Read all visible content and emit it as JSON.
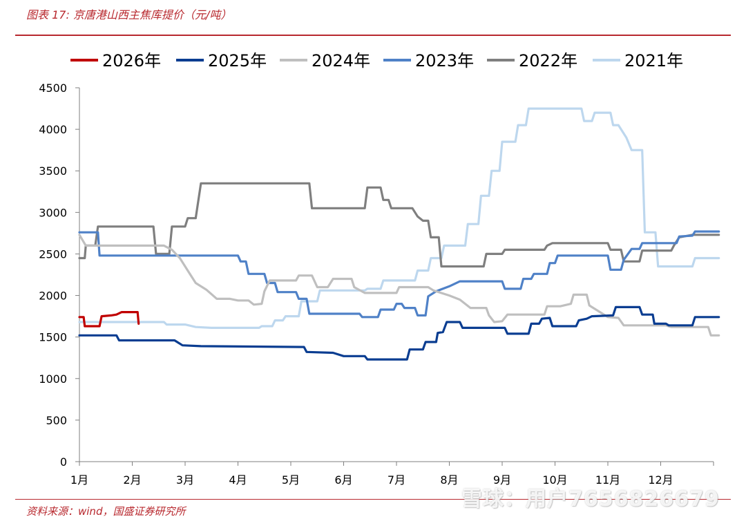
{
  "figure_title": "图表 17: 京唐港山西主焦库提价（元/吨）",
  "source_note": "资料来源：wind，国盛证券研究所",
  "watermark": "雪球：用户7656826679",
  "chart_data": {
    "type": "line",
    "title": "",
    "xlabel": "",
    "ylabel": "",
    "ylim": [
      0,
      4500
    ],
    "yticks": [
      "0",
      "500",
      "1000",
      "1500",
      "2000",
      "2500",
      "3000",
      "3500",
      "4000",
      "4500"
    ],
    "xlim": [
      1,
      13
    ],
    "xticks": [
      "1月",
      "2月",
      "3月",
      "4月",
      "5月",
      "6月",
      "7月",
      "8月",
      "9月",
      "10月",
      "11月",
      "12月"
    ],
    "grid": false,
    "legend_position": "top",
    "series": [
      {
        "name": "2026年",
        "color": "#c00000",
        "width": 3.2,
        "points": [
          [
            1,
            1740
          ],
          [
            1.08,
            1740
          ],
          [
            1.1,
            1630
          ],
          [
            1.38,
            1630
          ],
          [
            1.42,
            1750
          ],
          [
            1.6,
            1760
          ],
          [
            1.7,
            1770
          ],
          [
            1.8,
            1800
          ],
          [
            2.1,
            1800
          ],
          [
            2.12,
            1660
          ]
        ]
      },
      {
        "name": "2025年",
        "color": "#0a3d91",
        "width": 3.2,
        "points": [
          [
            1,
            1520
          ],
          [
            1.7,
            1520
          ],
          [
            1.75,
            1460
          ],
          [
            2.8,
            1460
          ],
          [
            2.95,
            1400
          ],
          [
            3.3,
            1390
          ],
          [
            5.25,
            1380
          ],
          [
            5.3,
            1320
          ],
          [
            5.8,
            1310
          ],
          [
            6,
            1270
          ],
          [
            6.4,
            1270
          ],
          [
            6.45,
            1230
          ],
          [
            7.2,
            1230
          ],
          [
            7.25,
            1350
          ],
          [
            7.5,
            1350
          ],
          [
            7.55,
            1440
          ],
          [
            7.75,
            1440
          ],
          [
            7.78,
            1550
          ],
          [
            7.88,
            1560
          ],
          [
            7.95,
            1680
          ],
          [
            8.2,
            1680
          ],
          [
            8.25,
            1610
          ],
          [
            9.05,
            1610
          ],
          [
            9.1,
            1540
          ],
          [
            9.5,
            1540
          ],
          [
            9.55,
            1660
          ],
          [
            9.7,
            1660
          ],
          [
            9.75,
            1720
          ],
          [
            9.9,
            1730
          ],
          [
            9.95,
            1630
          ],
          [
            10.4,
            1630
          ],
          [
            10.45,
            1700
          ],
          [
            10.6,
            1720
          ],
          [
            10.7,
            1750
          ],
          [
            11.1,
            1760
          ],
          [
            11.15,
            1860
          ],
          [
            11.6,
            1860
          ],
          [
            11.65,
            1770
          ],
          [
            11.85,
            1770
          ],
          [
            11.88,
            1660
          ],
          [
            12.1,
            1660
          ],
          [
            12.15,
            1640
          ],
          [
            12.6,
            1640
          ],
          [
            12.65,
            1740
          ],
          [
            13.1,
            1740
          ]
        ]
      },
      {
        "name": "2024年",
        "color": "#bfbfbf",
        "width": 3.2,
        "points": [
          [
            1,
            2730
          ],
          [
            1.12,
            2600
          ],
          [
            2.6,
            2600
          ],
          [
            2.75,
            2550
          ],
          [
            2.9,
            2450
          ],
          [
            3.05,
            2300
          ],
          [
            3.2,
            2150
          ],
          [
            3.4,
            2070
          ],
          [
            3.6,
            1960
          ],
          [
            3.85,
            1960
          ],
          [
            4,
            1940
          ],
          [
            4.2,
            1940
          ],
          [
            4.3,
            1890
          ],
          [
            4.45,
            1900
          ],
          [
            4.5,
            2050
          ],
          [
            4.6,
            2180
          ],
          [
            5.1,
            2180
          ],
          [
            5.15,
            2240
          ],
          [
            5.4,
            2240
          ],
          [
            5.5,
            2100
          ],
          [
            5.7,
            2100
          ],
          [
            5.8,
            2200
          ],
          [
            6.15,
            2200
          ],
          [
            6.2,
            2100
          ],
          [
            6.4,
            2030
          ],
          [
            7,
            2030
          ],
          [
            7.05,
            2100
          ],
          [
            7.6,
            2100
          ],
          [
            7.7,
            2060
          ],
          [
            8,
            2000
          ],
          [
            8.2,
            1950
          ],
          [
            8.4,
            1850
          ],
          [
            8.7,
            1850
          ],
          [
            8.75,
            1760
          ],
          [
            8.85,
            1680
          ],
          [
            9,
            1690
          ],
          [
            9.1,
            1770
          ],
          [
            9.8,
            1770
          ],
          [
            9.85,
            1870
          ],
          [
            10.1,
            1870
          ],
          [
            10.3,
            1900
          ],
          [
            10.35,
            2010
          ],
          [
            10.6,
            2010
          ],
          [
            10.65,
            1880
          ],
          [
            10.9,
            1780
          ],
          [
            11,
            1740
          ],
          [
            11.2,
            1730
          ],
          [
            11.3,
            1640
          ],
          [
            12.1,
            1640
          ],
          [
            12.2,
            1620
          ],
          [
            12.9,
            1620
          ],
          [
            12.95,
            1520
          ],
          [
            13.1,
            1520
          ]
        ]
      },
      {
        "name": "2023年",
        "color": "#4f81c7",
        "width": 3.2,
        "points": [
          [
            1,
            2760
          ],
          [
            1.35,
            2760
          ],
          [
            1.38,
            2480
          ],
          [
            4,
            2480
          ],
          [
            4.05,
            2410
          ],
          [
            4.15,
            2410
          ],
          [
            4.2,
            2260
          ],
          [
            4.5,
            2260
          ],
          [
            4.55,
            2150
          ],
          [
            4.7,
            2150
          ],
          [
            4.75,
            2040
          ],
          [
            5.1,
            2040
          ],
          [
            5.15,
            1960
          ],
          [
            5.3,
            1960
          ],
          [
            5.35,
            1780
          ],
          [
            6.3,
            1780
          ],
          [
            6.35,
            1740
          ],
          [
            6.65,
            1740
          ],
          [
            6.7,
            1830
          ],
          [
            6.95,
            1830
          ],
          [
            7,
            1900
          ],
          [
            7.1,
            1900
          ],
          [
            7.15,
            1850
          ],
          [
            7.35,
            1850
          ],
          [
            7.4,
            1760
          ],
          [
            7.55,
            1760
          ],
          [
            7.6,
            1990
          ],
          [
            7.75,
            2050
          ],
          [
            8,
            2110
          ],
          [
            8.2,
            2170
          ],
          [
            9,
            2170
          ],
          [
            9.05,
            2080
          ],
          [
            9.35,
            2080
          ],
          [
            9.4,
            2200
          ],
          [
            9.55,
            2200
          ],
          [
            9.6,
            2260
          ],
          [
            9.85,
            2260
          ],
          [
            9.9,
            2390
          ],
          [
            10,
            2390
          ],
          [
            10.05,
            2480
          ],
          [
            11,
            2480
          ],
          [
            11.05,
            2310
          ],
          [
            11.25,
            2310
          ],
          [
            11.3,
            2430
          ],
          [
            11.45,
            2560
          ],
          [
            11.6,
            2560
          ],
          [
            11.65,
            2630
          ],
          [
            12.3,
            2630
          ],
          [
            12.35,
            2710
          ],
          [
            12.6,
            2720
          ],
          [
            12.65,
            2770
          ],
          [
            13.1,
            2770
          ]
        ]
      },
      {
        "name": "2022年",
        "color": "#7f7f7f",
        "width": 3.2,
        "points": [
          [
            1,
            2450
          ],
          [
            1.1,
            2450
          ],
          [
            1.12,
            2600
          ],
          [
            1.3,
            2600
          ],
          [
            1.35,
            2830
          ],
          [
            2.4,
            2830
          ],
          [
            2.45,
            2500
          ],
          [
            2.7,
            2500
          ],
          [
            2.75,
            2830
          ],
          [
            3,
            2830
          ],
          [
            3.05,
            2930
          ],
          [
            3.2,
            2930
          ],
          [
            3.3,
            3350
          ],
          [
            5.35,
            3350
          ],
          [
            5.4,
            3050
          ],
          [
            6.4,
            3050
          ],
          [
            6.45,
            3300
          ],
          [
            6.7,
            3300
          ],
          [
            6.75,
            3150
          ],
          [
            6.85,
            3150
          ],
          [
            6.9,
            3050
          ],
          [
            7.3,
            3050
          ],
          [
            7.4,
            2950
          ],
          [
            7.5,
            2900
          ],
          [
            7.6,
            2900
          ],
          [
            7.65,
            2700
          ],
          [
            7.8,
            2700
          ],
          [
            7.85,
            2350
          ],
          [
            8.65,
            2350
          ],
          [
            8.7,
            2500
          ],
          [
            9,
            2500
          ],
          [
            9.05,
            2550
          ],
          [
            9.8,
            2550
          ],
          [
            9.85,
            2600
          ],
          [
            9.95,
            2630
          ],
          [
            11,
            2630
          ],
          [
            11.05,
            2550
          ],
          [
            11.25,
            2550
          ],
          [
            11.3,
            2410
          ],
          [
            11.6,
            2410
          ],
          [
            11.65,
            2540
          ],
          [
            12.2,
            2540
          ],
          [
            12.25,
            2600
          ],
          [
            12.35,
            2700
          ],
          [
            12.6,
            2730
          ],
          [
            13.1,
            2730
          ]
        ]
      },
      {
        "name": "2021年",
        "color": "#bdd7ee",
        "width": 3.2,
        "points": [
          [
            1,
            1680
          ],
          [
            2.6,
            1680
          ],
          [
            2.65,
            1650
          ],
          [
            3,
            1650
          ],
          [
            3.2,
            1620
          ],
          [
            3.5,
            1610
          ],
          [
            4.4,
            1610
          ],
          [
            4.45,
            1630
          ],
          [
            4.65,
            1630
          ],
          [
            4.7,
            1700
          ],
          [
            4.85,
            1700
          ],
          [
            4.9,
            1750
          ],
          [
            5.15,
            1750
          ],
          [
            5.2,
            1930
          ],
          [
            5.5,
            1930
          ],
          [
            5.55,
            2060
          ],
          [
            6.4,
            2060
          ],
          [
            6.45,
            2080
          ],
          [
            6.7,
            2080
          ],
          [
            6.75,
            2180
          ],
          [
            7.35,
            2180
          ],
          [
            7.4,
            2300
          ],
          [
            7.6,
            2300
          ],
          [
            7.65,
            2450
          ],
          [
            7.85,
            2450
          ],
          [
            7.9,
            2600
          ],
          [
            8.3,
            2600
          ],
          [
            8.35,
            2860
          ],
          [
            8.55,
            2860
          ],
          [
            8.6,
            3200
          ],
          [
            8.75,
            3200
          ],
          [
            8.8,
            3500
          ],
          [
            8.95,
            3500
          ],
          [
            9,
            3850
          ],
          [
            9.25,
            3850
          ],
          [
            9.3,
            4050
          ],
          [
            9.45,
            4050
          ],
          [
            9.5,
            4250
          ],
          [
            10.5,
            4250
          ],
          [
            10.55,
            4100
          ],
          [
            10.7,
            4100
          ],
          [
            10.75,
            4200
          ],
          [
            11.05,
            4200
          ],
          [
            11.1,
            4050
          ],
          [
            11.2,
            4050
          ],
          [
            11.35,
            3900
          ],
          [
            11.45,
            3750
          ],
          [
            11.65,
            3750
          ],
          [
            11.7,
            2760
          ],
          [
            11.9,
            2760
          ],
          [
            11.95,
            2350
          ],
          [
            12.6,
            2350
          ],
          [
            12.65,
            2450
          ],
          [
            13.1,
            2450
          ]
        ]
      }
    ]
  }
}
